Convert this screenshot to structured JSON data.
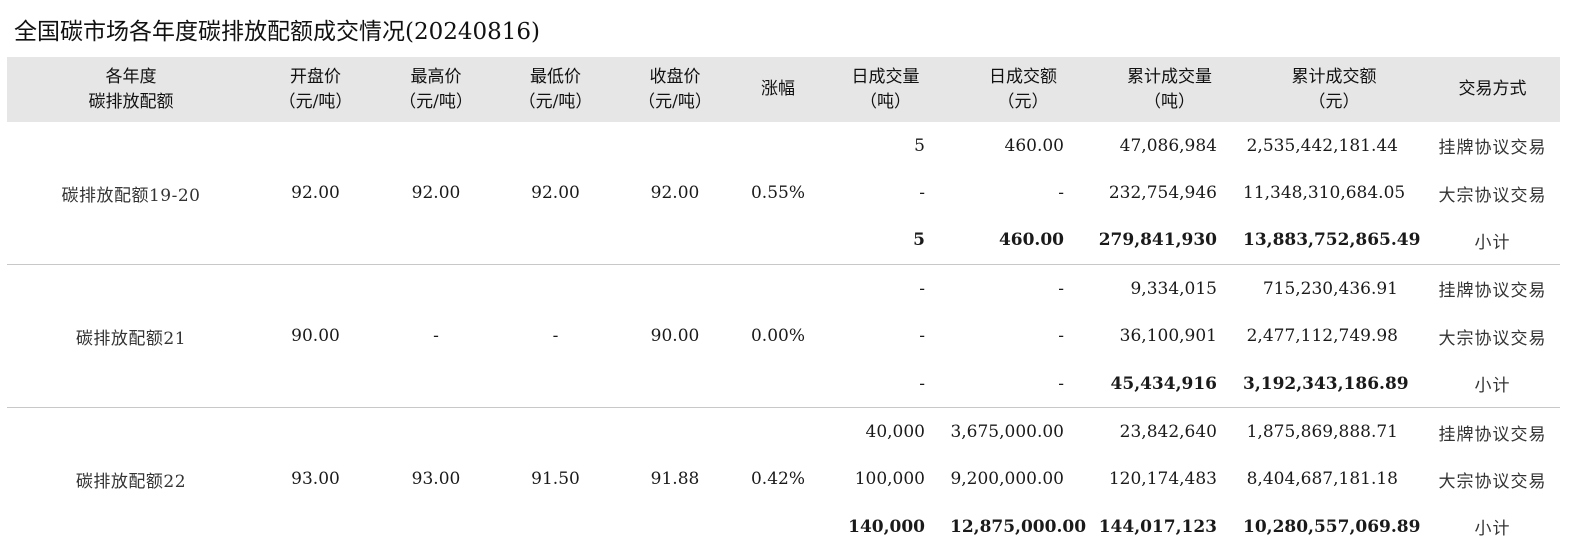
{
  "title": "全国碳市场各年度碳排放配额成交情况(20240816)",
  "headers": [
    {
      "line1": "各年度",
      "line2": "碳排放配额"
    },
    {
      "line1": "开盘价",
      "line2": "（元/吨）"
    },
    {
      "line1": "最高价",
      "line2": "（元/吨）"
    },
    {
      "line1": "最低价",
      "line2": "（元/吨）"
    },
    {
      "line1": "收盘价",
      "line2": "（元/吨）"
    },
    {
      "line1": "涨幅",
      "line2": ""
    },
    {
      "line1": "日成交量",
      "line2": "（吨）"
    },
    {
      "line1": "日成交额",
      "line2": "（元）"
    },
    {
      "line1": "累计成交量",
      "line2": "（吨）"
    },
    {
      "line1": "累计成交额",
      "line2": "（元）"
    },
    {
      "line1": "交易方式",
      "line2": ""
    }
  ],
  "groups": [
    {
      "name": "碳排放配额19-20",
      "open": "92.00",
      "high": "92.00",
      "low": "92.00",
      "close": "92.00",
      "change": "0.55%",
      "rows": [
        {
          "day_vol": "5",
          "day_amt": "460.00",
          "cum_vol": "47,086,984",
          "cum_amt": "2,535,442,181.44",
          "method": "挂牌协议交易"
        },
        {
          "day_vol": "-",
          "day_amt": "-",
          "cum_vol": "232,754,946",
          "cum_amt": "11,348,310,684.05",
          "method": "大宗协议交易"
        },
        {
          "day_vol": "5",
          "day_amt": "460.00",
          "cum_vol": "279,841,930",
          "cum_amt": "13,883,752,865.49",
          "method": "小计"
        }
      ]
    },
    {
      "name": "碳排放配额21",
      "open": "90.00",
      "high": "-",
      "low": "-",
      "close": "90.00",
      "change": "0.00%",
      "rows": [
        {
          "day_vol": "-",
          "day_amt": "-",
          "cum_vol": "9,334,015",
          "cum_amt": "715,230,436.91",
          "method": "挂牌协议交易"
        },
        {
          "day_vol": "-",
          "day_amt": "-",
          "cum_vol": "36,100,901",
          "cum_amt": "2,477,112,749.98",
          "method": "大宗协议交易"
        },
        {
          "day_vol": "-",
          "day_amt": "-",
          "cum_vol": "45,434,916",
          "cum_amt": "3,192,343,186.89",
          "method": "小计"
        }
      ]
    },
    {
      "name": "碳排放配额22",
      "open": "93.00",
      "high": "93.00",
      "low": "91.50",
      "close": "91.88",
      "change": "0.42%",
      "rows": [
        {
          "day_vol": "40,000",
          "day_amt": "3,675,000.00",
          "cum_vol": "23,842,640",
          "cum_amt": "1,875,869,888.71",
          "method": "挂牌协议交易"
        },
        {
          "day_vol": "100,000",
          "day_amt": "9,200,000.00",
          "cum_vol": "120,174,483",
          "cum_amt": "8,404,687,181.18",
          "method": "大宗协议交易"
        },
        {
          "day_vol": "140,000",
          "day_amt": "12,875,000.00",
          "cum_vol": "144,017,123",
          "cum_amt": "10,280,557,069.89",
          "method": "小计"
        }
      ]
    }
  ]
}
